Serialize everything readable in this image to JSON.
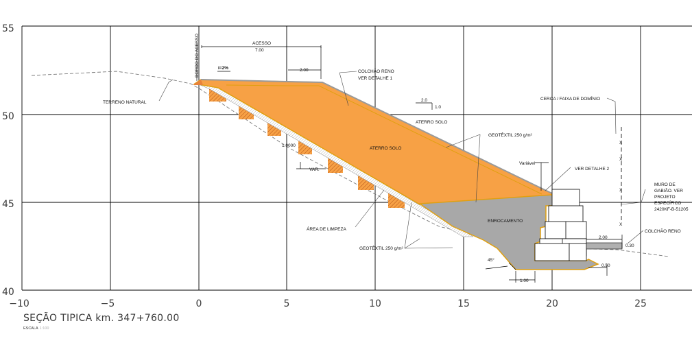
{
  "axes": {
    "x_ticks": [
      "−10",
      "−5",
      "0",
      "5",
      "10",
      "15",
      "20",
      "25"
    ],
    "y_ticks": [
      "55",
      "50",
      "45",
      "40"
    ],
    "xlim": [
      -10,
      28
    ],
    "ylim": [
      40,
      55
    ]
  },
  "title": {
    "section": "SEÇÃO TIPICA km. 347+760.00",
    "scale_label": "ESCALA",
    "scale_value": "1:100"
  },
  "annotations": {
    "bordo_acesso": "BORDO DO ACESSO",
    "acesso": "ACESSO",
    "acesso_width": "7.00",
    "slope": "i=2%",
    "dim_200": "2.00",
    "colchao_reno_1": "COLCHÃO RENO",
    "colchao_reno_2": "VER DETALHE 1",
    "terreno_natural": "TERRENO NATURAL",
    "ratio_h": "2.0",
    "ratio_v": "1.0",
    "aterro_solo_upper": "ATERRO SOLO",
    "aterro_solo_main": "ATERRO SOLO",
    "geotextil_upper": "GEOTÊXTIL 250 g/m²",
    "dim_1000": "1.0000",
    "var": "VAR.",
    "variavel": "Variável",
    "ver_detalhe_2": "VER DETALHE 2",
    "cerca": "CERCA / FAIXA DE DOMÍNIO",
    "muro_1": "MURO DE",
    "muro_2": "GABIÃO. VER",
    "muro_3": "PROJETO",
    "muro_4": "ESPECÍFICO",
    "muro_5": "2420KF-B-51205",
    "colchao_reno_right": "COLCHÃO RENO",
    "area_limpeza": "ÁREA DE LIMPEZA",
    "enrocamento": "ENROCAMENTO",
    "geotextil_lower": "GEOTÊXTIL 250 g/m²",
    "dim_200_right": "2.00",
    "dim_030": "0.30",
    "angle_45": "45°",
    "dim_050": "0.50",
    "dim_100": "1.00",
    "fence_marks": [
      "X",
      "X",
      "X",
      "X"
    ]
  },
  "colors": {
    "fill_orange": "#f7a145",
    "edge_orange": "#e0a010",
    "hatch_orange": "#e8823a",
    "rock_gray": "#a8a8a8",
    "grid": "#000000",
    "gabion_fill": "#ffffff"
  }
}
